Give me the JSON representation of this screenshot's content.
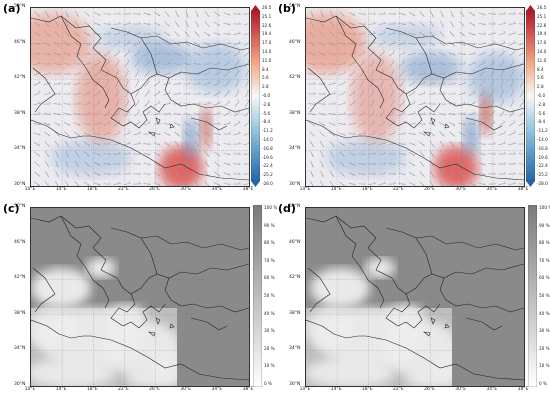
{
  "panels": [
    {
      "label": "(a)",
      "type": "wind"
    },
    {
      "label": "(b)",
      "type": "wind"
    },
    {
      "label": "(c)",
      "type": "cloud"
    },
    {
      "label": "(d)",
      "type": "cloud"
    }
  ],
  "lat_ticks": [
    "50°N",
    "46°N",
    "42°N",
    "38°N",
    "34°N",
    "30°N"
  ],
  "lon_ticks": [
    "10°E",
    "14°E",
    "18°E",
    "22°E",
    "26°E",
    "30°E",
    "34°E",
    "38°E"
  ],
  "wind_colorbar_ticks": [
    "26.5",
    "25.1",
    "22.6",
    "19.4",
    "17.0",
    "14.0",
    "11.0",
    "8.4",
    "5.6",
    "2.8",
    "-0.0",
    "-2.8",
    "-5.6",
    "-8.4",
    "-11.2",
    "-14.0",
    "-16.8",
    "-19.6",
    "-22.4",
    "-25.2",
    "-28.0"
  ],
  "cloud_colorbar_ticks": [
    "100 %",
    "90 %",
    "80 %",
    "70 %",
    "60 %",
    "50 %",
    "40 %",
    "30 %",
    "20 %",
    "10 %",
    "0 %"
  ],
  "colors": {
    "warm": "#d73027",
    "cool": "#4575b4",
    "neutral": "#f0ece8",
    "cloud_dark": "#8a8a8a",
    "cloud_light": "#f4f4f4"
  }
}
